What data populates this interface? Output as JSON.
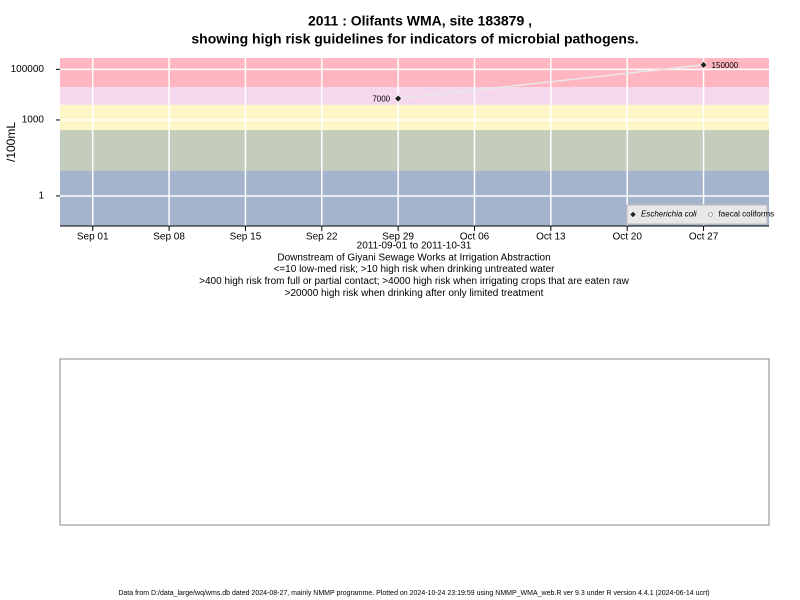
{
  "chart_data": {
    "type": "line",
    "title": "2011 : Olifants WMA, site 183879 ,",
    "subtitle": "showing high risk guidelines for indicators of microbial pathogens.",
    "x_label_lines": [
      "2011-09-01 to 2011-10-31",
      "Downstream of Giyani Sewage Works at Irrigation Abstraction",
      "<=10 low-med risk; >10 high risk when drinking untreated water",
      ">400 high risk from full or partial contact; >4000 high risk when irrigating crops that are eaten raw",
      ">20000 high risk when drinking after only limited treatment"
    ],
    "y_label": "/100mL",
    "log_y": true,
    "ylim": [
      0.065,
      280000
    ],
    "yticks": [
      1,
      1000,
      100000
    ],
    "xlim": [
      "2011-08-29",
      "2011-11-02"
    ],
    "xticks": [
      {
        "value": "2011-09-01",
        "label": "Sep 01"
      },
      {
        "value": "2011-09-08",
        "label": "Sep 08"
      },
      {
        "value": "2011-09-15",
        "label": "Sep 15"
      },
      {
        "value": "2011-09-22",
        "label": "Sep 22"
      },
      {
        "value": "2011-09-29",
        "label": "Sep 29"
      },
      {
        "value": "2011-10-06",
        "label": "Oct 06"
      },
      {
        "value": "2011-10-13",
        "label": "Oct 13"
      },
      {
        "value": "2011-10-20",
        "label": "Oct 20"
      },
      {
        "value": "2011-10-27",
        "label": "Oct 27"
      }
    ],
    "grid": true,
    "band_limits": [
      10,
      400,
      4000,
      20000
    ],
    "band_colors": [
      "#a3b4cc",
      "#c4ccbc",
      "#fff6c8",
      "#f6d8ee",
      "#ffb6c1"
    ],
    "legend": "lower right",
    "series": [
      {
        "name": "Escherichia coli",
        "color": "#222222",
        "x": [
          "2011-09-29",
          "2011-10-27"
        ],
        "values": [
          7000,
          150000
        ]
      },
      {
        "name": "faecal coliforms",
        "color": "#ffffff",
        "x": [],
        "values": []
      }
    ],
    "footer": "Data from D:/data_large/wq/wms.db dated 2024-08-27, mainly NMMP programme. Plotted on 2024-10-24 23:19:59 using NMMP_WMA_web.R ver 9.3 under R version 4.4.1 (2024-06-14 ucrt)"
  }
}
